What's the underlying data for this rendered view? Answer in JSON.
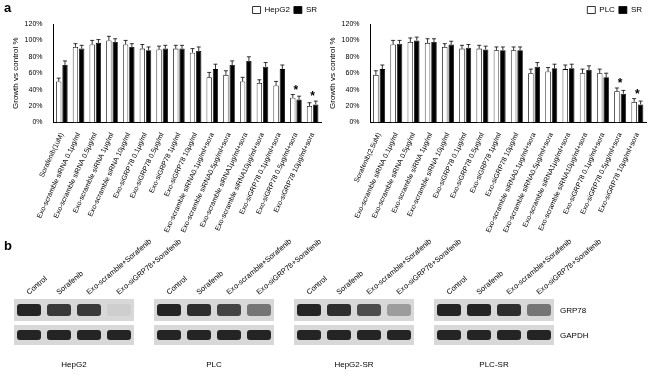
{
  "chart_data": [
    {
      "type": "bar",
      "categories": [
        "Sorafenib(1uM)",
        "Exo-scramble siRNA 0.1μg/ml",
        "Exo-scramble siRNA 0.5μg/ml",
        "Exo-scramble siRNA 1μg/ml",
        "Exo-scramble siRNA 10μg/ml",
        "Exo-siGRP78 0.1μg/ml",
        "Exo-siGRP78 0.5μg/ml",
        "Exo-siGRP78 1μg/ml",
        "Exo-siGRP78 10μg/ml",
        "Exo-scramble siRNA0.1μg/ml+sora",
        "Exo-scramble siRNA0.5μg/ml+sora",
        "Exo-scramble siRNA1μg/ml+sora",
        "Exo-scramble siRNA10μg/ml+sora",
        "Exo-siGRP78 0.1μg/ml+sora",
        "Exo-siGRP78 0.5μg/ml+sora",
        "Exo-siGRP78 10μg/ml+sora"
      ],
      "series": [
        {
          "name": "HepG2",
          "color": "#ffffff",
          "values": [
            50,
            92,
            95,
            100,
            95,
            90,
            89,
            90,
            85,
            55,
            58,
            50,
            48,
            45,
            30,
            20
          ],
          "errors": [
            4,
            4,
            5,
            5,
            5,
            5,
            4,
            4,
            5,
            6,
            5,
            5,
            4,
            5,
            4,
            4
          ]
        },
        {
          "name": "SR",
          "color": "#000000",
          "values": [
            70,
            90,
            97,
            98,
            92,
            88,
            90,
            90,
            87,
            65,
            70,
            75,
            68,
            65,
            28,
            22
          ],
          "errors": [
            5,
            4,
            4,
            4,
            4,
            4,
            4,
            4,
            5,
            6,
            5,
            5,
            5,
            5,
            4,
            4
          ]
        }
      ],
      "ylim": [
        0,
        120
      ],
      "yticks": [
        {
          "value": 0,
          "label": "0%"
        },
        {
          "value": 20,
          "label": "20%"
        },
        {
          "value": 40,
          "label": "40%"
        },
        {
          "value": 60,
          "label": "60%"
        },
        {
          "value": 80,
          "label": "80%"
        },
        {
          "value": 100,
          "label": "100%"
        },
        {
          "value": 120,
          "label": "120%"
        }
      ],
      "y_label": "Growth vs control %",
      "grid": false,
      "legend": "upper right",
      "annotations": [
        {
          "text": "*",
          "category": "Exo-siGRP78 0.5μg/ml+sora"
        },
        {
          "text": "*",
          "category": "Exo-siGRP78 10μg/ml+sora"
        }
      ]
    },
    {
      "type": "bar",
      "categories": [
        "Sorafenib(2.5uM)",
        "Exo-scramble siRNA 0.1μg/ml",
        "Exo-scramble siRNA 0.5μg/ml",
        "Exo-scramble siRNA 1μg/ml",
        "Exo-scramble siRNA 10μg/ml",
        "Exo-siGRP78 0.1μg/ml",
        "Exo-siGRP78 0.5μg/ml",
        "Exo-siGRP78 1μg/ml",
        "Exo-siGRP78 10μg/ml",
        "Exo-scramble siRNA0.1μg/ml+sora",
        "Exo-scramble siRNA0.5μg/ml+sora",
        "Exo-scramble siRNA1μg/ml+sora",
        "Exo-scramble siRNA10μg/ml+sora",
        "Exo-siGRP78 0.1μg/ml+sora",
        "Exo-siGRP78 0.5μg/ml+sora",
        "Exo-siGRP78 10μg/ml+sora"
      ],
      "series": [
        {
          "name": "PLC",
          "color": "#ffffff",
          "values": [
            58,
            95,
            98,
            97,
            92,
            90,
            90,
            88,
            88,
            60,
            62,
            65,
            60,
            60,
            38,
            25
          ],
          "errors": [
            5,
            5,
            5,
            5,
            4,
            4,
            4,
            4,
            4,
            5,
            5,
            5,
            5,
            5,
            4,
            4
          ]
        },
        {
          "name": "SR",
          "color": "#000000",
          "values": [
            65,
            96,
            100,
            98,
            95,
            91,
            89,
            88,
            88,
            68,
            66,
            66,
            64,
            55,
            35,
            22
          ],
          "errors": [
            5,
            4,
            4,
            4,
            4,
            4,
            4,
            4,
            4,
            5,
            5,
            5,
            5,
            5,
            4,
            4
          ]
        }
      ],
      "ylim": [
        0,
        120
      ],
      "yticks": [
        {
          "value": 0,
          "label": "0%"
        },
        {
          "value": 20,
          "label": "20%"
        },
        {
          "value": 40,
          "label": "40%"
        },
        {
          "value": 60,
          "label": "60%"
        },
        {
          "value": 80,
          "label": "80%"
        },
        {
          "value": 100,
          "label": "100%"
        },
        {
          "value": 120,
          "label": "120%"
        }
      ],
      "y_label": "Growth vs control %",
      "grid": false,
      "legend": "upper right",
      "annotations": [
        {
          "text": "*",
          "category": "Exo-siGRP78 0.5μg/ml+sora"
        },
        {
          "text": "*",
          "category": "Exo-siGRP78 10μg/ml+sora"
        }
      ]
    }
  ],
  "panel_labels": [
    "a",
    "b"
  ],
  "blot": {
    "lanes": [
      "Control",
      "Sorafenib",
      "Exo-scramble+Sorafenib",
      "Exo-siGRP78+Sorafenib"
    ],
    "rows": [
      "GRP78",
      "GAPDH"
    ],
    "panels": [
      {
        "name": "HepG2",
        "GRP78": [
          0.9,
          0.8,
          0.8,
          0.05
        ],
        "GAPDH": [
          0.9,
          0.9,
          0.9,
          0.9
        ]
      },
      {
        "name": "PLC",
        "GRP78": [
          0.9,
          0.85,
          0.75,
          0.5
        ],
        "GAPDH": [
          0.9,
          0.9,
          0.9,
          0.9
        ]
      },
      {
        "name": "HepG2-SR",
        "GRP78": [
          0.9,
          0.85,
          0.7,
          0.3
        ],
        "GAPDH": [
          0.9,
          0.9,
          0.9,
          0.9
        ]
      },
      {
        "name": "PLC-SR",
        "GRP78": [
          0.9,
          0.9,
          0.85,
          0.5
        ],
        "GAPDH": [
          0.9,
          0.9,
          0.9,
          0.9
        ]
      }
    ]
  }
}
